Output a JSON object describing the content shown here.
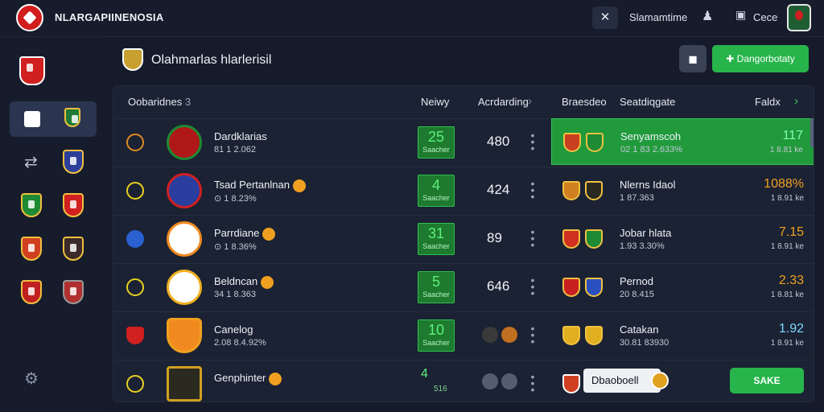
{
  "topbar": {
    "app_title": "NLARGAPIINENOSIA",
    "search_icon": "star-cross-icon",
    "username": "Slamamtime",
    "notification_icon": "bell-icon",
    "messages_label": "Cece"
  },
  "header": {
    "title": "Olahmarlas hlarlerisil",
    "icon_button": "square-icon",
    "primary_button": "Dangorbotaty"
  },
  "table": {
    "headers": {
      "col_team": "Oobaridnes",
      "col_team_count": "3",
      "col_new": "Neiwy",
      "col_ranking": "Acrdarding",
      "col_brand": "Braesdeo",
      "col_stats": "Seatdiqgate",
      "col_field": "Faldx"
    },
    "rows": [
      {
        "name": "Dardklarias",
        "meta": "81 1 2.062",
        "score": "25",
        "score_label": "Saacher",
        "num": "480",
        "rank_color": "#e08a20"
      },
      {
        "name": "Tsad Pertanlnan",
        "meta": "1 8.23%",
        "score": "4",
        "score_label": "Saacher",
        "num": "424",
        "rank_color": "#e8d020"
      },
      {
        "name": "Parrdiane",
        "meta": "1 8.36%",
        "score": "31",
        "score_label": "Saacher",
        "num": "89",
        "rank_color": "#2a60d0"
      },
      {
        "name": "Beldncan",
        "meta": "34 1 8.363",
        "score": "5",
        "score_label": "Saacher",
        "num": "646",
        "rank_color": "#e8d020"
      },
      {
        "name": "Canelog",
        "meta": "2.08 8.4.92%",
        "score": "10",
        "score_label": "Saacher",
        "num": "",
        "rank_color": "#d02020"
      },
      {
        "name": "Genphinter",
        "meta": "",
        "score": "4",
        "score_label": "516",
        "num": "",
        "rank_color": "#e8d020"
      }
    ],
    "right_rows": [
      {
        "name": "Senyamscoh",
        "meta": "02 1 83 2.633%",
        "value": "117",
        "sub": "1 8.81 ke",
        "value_color": "#7dffb0"
      },
      {
        "name": "Nlerns Idaol",
        "meta": "1 87.363",
        "value": "1088%",
        "sub": "1 8.91 ke",
        "value_color": "#f0a020"
      },
      {
        "name": "Jobar hlata",
        "meta": "1.93 3.30%",
        "value": "7.15",
        "sub": "1 8.91 ke",
        "value_color": "#f0a020"
      },
      {
        "name": "Pernod",
        "meta": "20 8.415",
        "value": "2.33",
        "sub": "1 8.81 ke",
        "value_color": "#f0a020"
      },
      {
        "name": "Catakan",
        "meta": "30.81 83930",
        "value": "1.92",
        "sub": "1 8.91 ke",
        "value_color": "#7dd8ff"
      }
    ],
    "footer_name": "Dbaoboell",
    "footer_button": "SAKE"
  },
  "colors": {
    "accent_green": "#27b44a",
    "bg": "#151b2a",
    "panel": "#1b2233"
  }
}
